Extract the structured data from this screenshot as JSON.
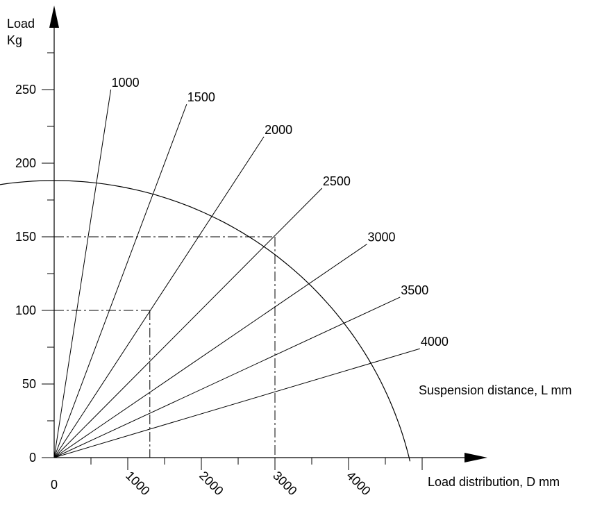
{
  "chart_data": {
    "type": "line",
    "title": "",
    "ylabel": [
      "Load",
      "Kg"
    ],
    "xlabel": "Load distribution, D mm",
    "series_label": "Suspension distance, L mm",
    "ylim": [
      0,
      250
    ],
    "xlim": [
      0,
      4000
    ],
    "y_ticks": [
      "0",
      "50",
      "100",
      "150",
      "200",
      "250"
    ],
    "x_ticks": [
      "0",
      "1000",
      "2000",
      "3000",
      "4000"
    ],
    "series": [
      {
        "name": "1000",
        "x": [
          0,
          770
        ],
        "y": [
          0,
          250
        ]
      },
      {
        "name": "1500",
        "x": [
          0,
          1800
        ],
        "y": [
          0,
          240
        ]
      },
      {
        "name": "2000",
        "x": [
          0,
          2850
        ],
        "y": [
          0,
          218
        ]
      },
      {
        "name": "2500",
        "x": [
          0,
          3640
        ],
        "y": [
          0,
          183
        ]
      },
      {
        "name": "3000",
        "x": [
          0,
          4250
        ],
        "y": [
          0,
          145
        ]
      },
      {
        "name": "3500",
        "x": [
          0,
          4700
        ],
        "y": [
          0,
          109
        ]
      },
      {
        "name": "4000",
        "x": [
          0,
          4970
        ],
        "y": [
          0,
          74
        ]
      }
    ],
    "annotations": [
      {
        "type": "guide",
        "x": 1300,
        "y": 100
      },
      {
        "type": "guide",
        "x": 3000,
        "y": 150
      }
    ]
  }
}
